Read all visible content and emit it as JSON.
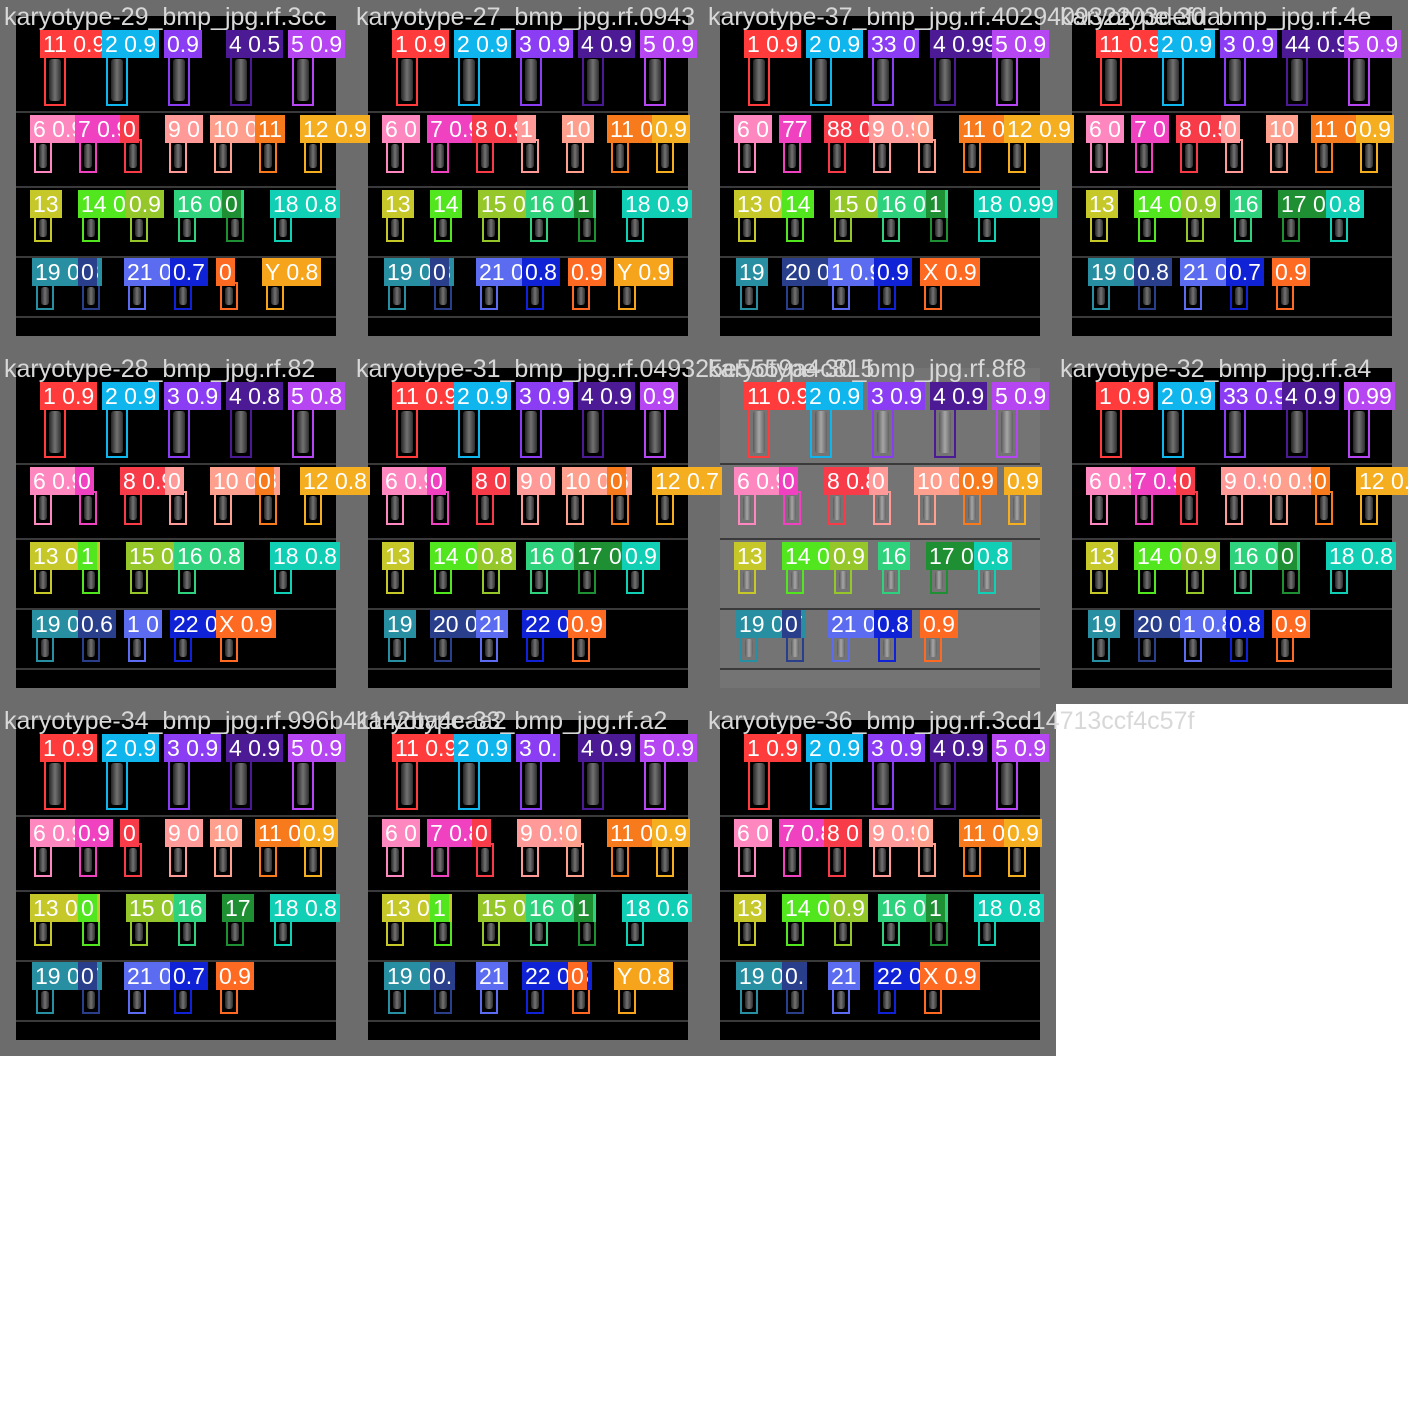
{
  "colors": {
    "1": "#ff3b3b",
    "2": "#0fb6ee",
    "3": "#8a3df2",
    "4": "#4b1a94",
    "5": "#b645f2",
    "6": "#ff87bf",
    "7": "#f042c0",
    "8": "#f73b49",
    "9": "#ff9a99",
    "10": "#ffa08f",
    "11": "#f77a1c",
    "12": "#f5ae20",
    "13": "#c6c82a",
    "14": "#52e61e",
    "15": "#95c62a",
    "16": "#2ed27c",
    "17": "#1f8f33",
    "18": "#10cfb5",
    "19": "#288fa2",
    "20": "#2a3f8c",
    "21": "#5c6cf0",
    "22": "#1022d6",
    "X": "#ff6a22",
    "Y": "#f5a41c"
  },
  "tiles": [
    {
      "filename": "karyotype-29_bmp_jpg.rf.3cc",
      "light": false,
      "labels": [
        [
          "1",
          "11 0.9"
        ],
        [
          "2",
          "2 0.9"
        ],
        [
          "3",
          "0.9"
        ],
        [
          "4",
          "4 0.5"
        ],
        [
          "5",
          "5 0.9"
        ],
        [
          "6",
          "6 0.9"
        ],
        [
          "7",
          "7 0.9"
        ],
        [
          "8",
          "0"
        ],
        [
          "9",
          "9 0"
        ],
        [
          "10",
          "10 0.8"
        ],
        [
          "11",
          "11"
        ],
        [
          "12",
          "12 0.9"
        ],
        [
          "13",
          "13"
        ],
        [
          "14",
          "14 0.8"
        ],
        [
          "15",
          "0.9"
        ],
        [
          "16",
          "16 0.8"
        ],
        [
          "17",
          "0"
        ],
        [
          "18",
          "18 0.8"
        ],
        [
          "19",
          "19 0.8"
        ],
        [
          "20",
          "0"
        ],
        [
          "21",
          "21 0.6"
        ],
        [
          "22",
          "0.7"
        ],
        [
          "X",
          "0"
        ],
        [
          "Y",
          "Y 0.8"
        ]
      ]
    },
    {
      "filename": "karyotype-27_bmp_jpg.rf.0943",
      "light": false,
      "labels": [
        [
          "1",
          "1 0.9"
        ],
        [
          "2",
          "2 0.9"
        ],
        [
          "3",
          "3 0.9"
        ],
        [
          "4",
          "4 0.9"
        ],
        [
          "5",
          "5 0.9"
        ],
        [
          "6",
          "6 0"
        ],
        [
          "7",
          "7 0.9"
        ],
        [
          "8",
          "8 0.9"
        ],
        [
          "9",
          "1"
        ],
        [
          "10",
          "10"
        ],
        [
          "11",
          "11 0.9"
        ],
        [
          "12",
          "0.9"
        ],
        [
          "13",
          "13"
        ],
        [
          "14",
          "14"
        ],
        [
          "15",
          "15 0.9"
        ],
        [
          "16",
          "16 0.9"
        ],
        [
          "17",
          "1"
        ],
        [
          "18",
          "18 0.9"
        ],
        [
          "19",
          "19 0.8"
        ],
        [
          "20",
          "0"
        ],
        [
          "21",
          "21 0.7"
        ],
        [
          "22",
          "0.8"
        ],
        [
          "X",
          "0.9"
        ],
        [
          "Y",
          "Y 0.9"
        ]
      ]
    },
    {
      "filename": "karyotype-37_bmp_jpg.rf.402940932203defda",
      "light": false,
      "labels": [
        [
          "1",
          "1 0.9"
        ],
        [
          "2",
          "2 0.9"
        ],
        [
          "3",
          "33 0"
        ],
        [
          "4",
          "4 0.99"
        ],
        [
          "5",
          "5 0.9"
        ],
        [
          "6",
          "6 0"
        ],
        [
          "7",
          "77"
        ],
        [
          "8",
          "88 0"
        ],
        [
          "9",
          "9 0.9"
        ],
        [
          "10",
          "0"
        ],
        [
          "11",
          "11 0"
        ],
        [
          "12",
          "12 0.9"
        ],
        [
          "13",
          "13 0"
        ],
        [
          "14",
          "14"
        ],
        [
          "15",
          "15 0.9"
        ],
        [
          "16",
          "16 0.9"
        ],
        [
          "17",
          "1"
        ],
        [
          "18",
          "18 0.99"
        ],
        [
          "19",
          "19"
        ],
        [
          "20",
          "20 0.9"
        ],
        [
          "21",
          "1 0.9"
        ],
        [
          "22",
          "0.9"
        ],
        [
          "X",
          "X 0.9"
        ]
      ]
    },
    {
      "filename": "karyotype-30_bmp_jpg.rf.4e",
      "light": false,
      "labels": [
        [
          "1",
          "11 0.9"
        ],
        [
          "2",
          "2 0.9"
        ],
        [
          "3",
          "3 0.9"
        ],
        [
          "4",
          "44 0.9"
        ],
        [
          "5",
          "5 0.9"
        ],
        [
          "6",
          "6 0"
        ],
        [
          "7",
          "7 0"
        ],
        [
          "8",
          "8 0.5"
        ],
        [
          "9",
          "0"
        ],
        [
          "10",
          "10"
        ],
        [
          "11",
          "11 0.8"
        ],
        [
          "12",
          "0.9"
        ],
        [
          "13",
          "13"
        ],
        [
          "14",
          "14 0.8"
        ],
        [
          "15",
          "0.9"
        ],
        [
          "16",
          "16"
        ],
        [
          "17",
          "17 0.6"
        ],
        [
          "18",
          "0.8"
        ],
        [
          "19",
          "19 0.5"
        ],
        [
          "20",
          "0.8"
        ],
        [
          "21",
          "21 0.6"
        ],
        [
          "22",
          "0.7"
        ],
        [
          "X",
          "0.9"
        ]
      ]
    },
    {
      "filename": "karyotype-28_bmp_jpg.rf.82",
      "light": false,
      "labels": [
        [
          "1",
          "1 0.9"
        ],
        [
          "2",
          "2 0.9"
        ],
        [
          "3",
          "3 0.9"
        ],
        [
          "4",
          "4 0.8"
        ],
        [
          "5",
          "5 0.8"
        ],
        [
          "6",
          "6 0.9"
        ],
        [
          "7",
          "0"
        ],
        [
          "8",
          "8 0.9"
        ],
        [
          "9",
          "0"
        ],
        [
          "10",
          "10 0.8"
        ],
        [
          "11",
          "0"
        ],
        [
          "12",
          "12 0.8"
        ],
        [
          "13",
          "13 0.9"
        ],
        [
          "14",
          "1"
        ],
        [
          "15",
          "15 0.8"
        ],
        [
          "16",
          "16 0.8"
        ],
        [
          "18",
          "18 0.8"
        ],
        [
          "19",
          "19 0.5"
        ],
        [
          "20",
          "0.6"
        ],
        [
          "21",
          "1 0"
        ],
        [
          "22",
          "22 0.4"
        ],
        [
          "X",
          "X 0.9"
        ]
      ]
    },
    {
      "filename": "karyotype-31_bmp_jpg.rf.049325e5559a4c815",
      "light": false,
      "labels": [
        [
          "1",
          "11 0.9"
        ],
        [
          "2",
          "2 0.9"
        ],
        [
          "3",
          "3 0.9"
        ],
        [
          "4",
          "4 0.9"
        ],
        [
          "5",
          "0.9"
        ],
        [
          "6",
          "6 0.9"
        ],
        [
          "7",
          "0"
        ],
        [
          "8",
          "8 0"
        ],
        [
          "9",
          "9 0"
        ],
        [
          "10",
          "10 0.6"
        ],
        [
          "11",
          "0"
        ],
        [
          "12",
          "12 0.7"
        ],
        [
          "13",
          "13"
        ],
        [
          "14",
          "14 0.8"
        ],
        [
          "15",
          "0.8"
        ],
        [
          "16",
          "16 0"
        ],
        [
          "17",
          "17 0.8"
        ],
        [
          "18",
          "0.9"
        ],
        [
          "19",
          "19"
        ],
        [
          "20",
          "20 0.2"
        ],
        [
          "21",
          "21"
        ],
        [
          "22",
          "22 0.7"
        ],
        [
          "X",
          "0.9"
        ]
      ]
    },
    {
      "filename": "karyotype-30_bmp_jpg.rf.8f8",
      "light": true,
      "labels": [
        [
          "1",
          "11 0.9"
        ],
        [
          "2",
          "2 0.9"
        ],
        [
          "3",
          "3 0.9"
        ],
        [
          "4",
          "4 0.9"
        ],
        [
          "5",
          "5 0.9"
        ],
        [
          "6",
          "6 0.9"
        ],
        [
          "7",
          "0"
        ],
        [
          "8",
          "8 0.8"
        ],
        [
          "9",
          "0"
        ],
        [
          "10",
          "10 0.8"
        ],
        [
          "11",
          "0.9"
        ],
        [
          "12",
          "0.9"
        ],
        [
          "13",
          "13"
        ],
        [
          "14",
          "14 0.8"
        ],
        [
          "15",
          "0.9"
        ],
        [
          "16",
          "16"
        ],
        [
          "17",
          "17 0.6"
        ],
        [
          "18",
          "0.8"
        ],
        [
          "19",
          "19 0.7"
        ],
        [
          "20",
          "0"
        ],
        [
          "21",
          "21 0.7"
        ],
        [
          "22",
          "0.8"
        ],
        [
          "X",
          "0.9"
        ]
      ]
    },
    {
      "filename": "karyotype-32_bmp_jpg.rf.a4",
      "light": false,
      "labels": [
        [
          "1",
          "1 0.9"
        ],
        [
          "2",
          "2 0.9"
        ],
        [
          "3",
          "33 0.9"
        ],
        [
          "4",
          "4 0.9"
        ],
        [
          "5",
          "0.99"
        ],
        [
          "6",
          "6 0.9"
        ],
        [
          "7",
          "7 0.9"
        ],
        [
          "8",
          "0"
        ],
        [
          "9",
          "9 0.9"
        ],
        [
          "10",
          "0 0.9"
        ],
        [
          "11",
          "0"
        ],
        [
          "12",
          "12 0.9"
        ],
        [
          "13",
          "13"
        ],
        [
          "14",
          "14 0.8"
        ],
        [
          "15",
          "0.9"
        ],
        [
          "16",
          "16 0.8"
        ],
        [
          "17",
          "0"
        ],
        [
          "18",
          "18 0.8"
        ],
        [
          "19",
          "19"
        ],
        [
          "20",
          "20 0.7"
        ],
        [
          "21",
          "1 0.8"
        ],
        [
          "22",
          "0.8"
        ],
        [
          "X",
          "0.9"
        ]
      ]
    },
    {
      "filename": "karyotype-34_bmp_jpg.rf.996b41142ba4caa2",
      "light": false,
      "labels": [
        [
          "1",
          "1 0.9"
        ],
        [
          "2",
          "2 0.9"
        ],
        [
          "3",
          "3 0.9"
        ],
        [
          "4",
          "4 0.9"
        ],
        [
          "5",
          "5 0.9"
        ],
        [
          "6",
          "6 0.9"
        ],
        [
          "7",
          "0.9"
        ],
        [
          "8",
          "0"
        ],
        [
          "9",
          "9 0"
        ],
        [
          "10",
          "10"
        ],
        [
          "11",
          "11 0.9"
        ],
        [
          "12",
          "0.9"
        ],
        [
          "13",
          "13 0.8"
        ],
        [
          "14",
          "0"
        ],
        [
          "15",
          "15 0.9"
        ],
        [
          "16",
          "16"
        ],
        [
          "17",
          "17"
        ],
        [
          "18",
          "18 0.8"
        ],
        [
          "19",
          "19 0.7"
        ],
        [
          "20",
          "0"
        ],
        [
          "21",
          "21 0.7"
        ],
        [
          "22",
          "0.7"
        ],
        [
          "X",
          "0.9"
        ]
      ]
    },
    {
      "filename": "karyotype-33_bmp_jpg.rf.a2",
      "light": false,
      "labels": [
        [
          "1",
          "11 0.9"
        ],
        [
          "2",
          "2 0.9"
        ],
        [
          "3",
          "3 0."
        ],
        [
          "4",
          "4 0.9"
        ],
        [
          "5",
          "5 0.9"
        ],
        [
          "6",
          "6 0"
        ],
        [
          "7",
          "7 0.8"
        ],
        [
          "8",
          "0"
        ],
        [
          "9",
          "9 0.9"
        ],
        [
          "10",
          "0"
        ],
        [
          "11",
          "11 0.8"
        ],
        [
          "12",
          "0.9"
        ],
        [
          "13",
          "13 0.9"
        ],
        [
          "14",
          "1"
        ],
        [
          "15",
          "15 0.9"
        ],
        [
          "16",
          "16 0.9"
        ],
        [
          "17",
          "1"
        ],
        [
          "18",
          "18 0.6"
        ],
        [
          "19",
          "19 0.8"
        ],
        [
          "20",
          "0."
        ],
        [
          "21",
          "21"
        ],
        [
          "22",
          "22 0.8"
        ],
        [
          "X",
          "0"
        ],
        [
          "Y",
          "Y 0.8"
        ]
      ]
    },
    {
      "filename": "karyotype-36_bmp_jpg.rf.3cd14713ccf4c57f",
      "light": false,
      "labels": [
        [
          "1",
          "1 0.9"
        ],
        [
          "2",
          "2 0.9"
        ],
        [
          "3",
          "3 0.9"
        ],
        [
          "4",
          "4 0.9"
        ],
        [
          "5",
          "5 0.9"
        ],
        [
          "6",
          "6 0"
        ],
        [
          "7",
          "7 0.8"
        ],
        [
          "8",
          "8 0"
        ],
        [
          "9",
          "9 0.9"
        ],
        [
          "10",
          "0"
        ],
        [
          "11",
          "11 0.9"
        ],
        [
          "12",
          "0.9"
        ],
        [
          "13",
          "13"
        ],
        [
          "14",
          "14 0.9"
        ],
        [
          "15",
          "0.9"
        ],
        [
          "16",
          "16 0.8"
        ],
        [
          "17",
          "1"
        ],
        [
          "18",
          "18 0.8"
        ],
        [
          "19",
          "19 0.7"
        ],
        [
          "20",
          "0."
        ],
        [
          "21",
          "21"
        ],
        [
          "22",
          "22 0.5"
        ],
        [
          "X",
          "X 0.9"
        ]
      ]
    }
  ]
}
